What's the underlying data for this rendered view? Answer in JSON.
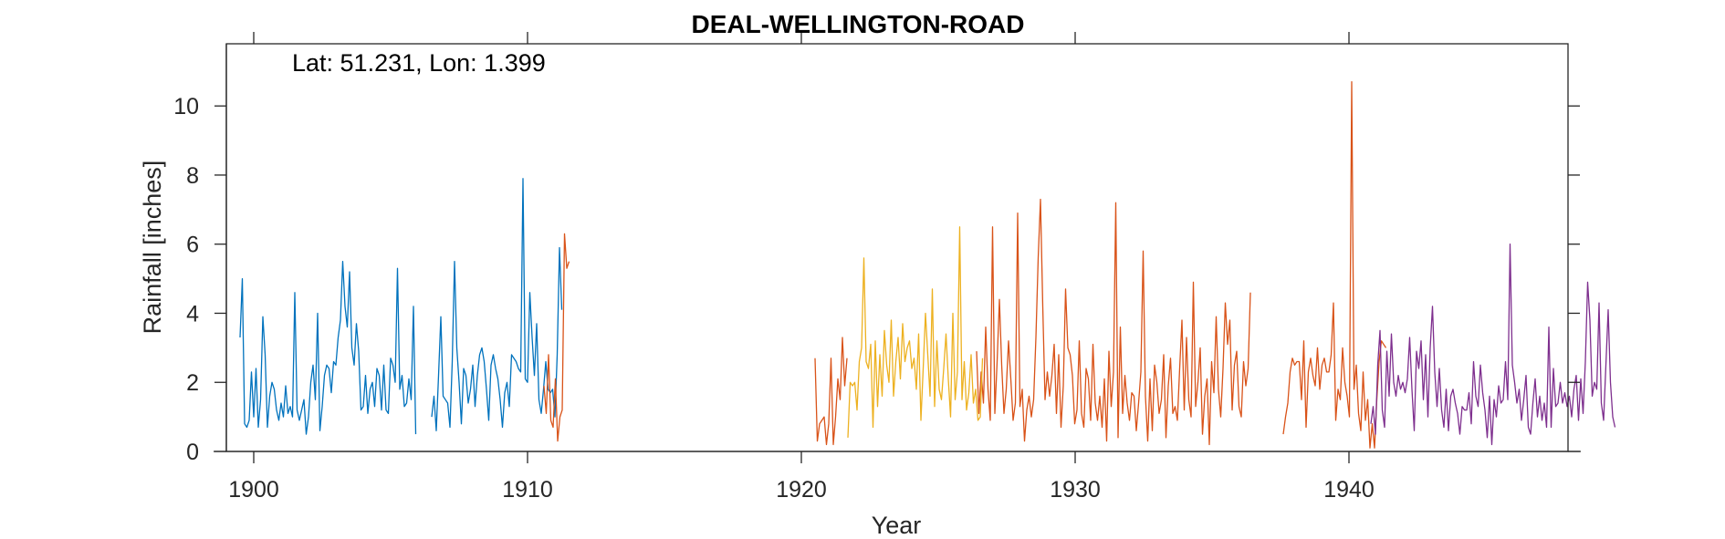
{
  "chart_data": {
    "type": "line",
    "title": "DEAL-WELLINGTON-ROAD",
    "annotation": "Lat: 51.231, Lon: 1.399",
    "xlabel": "Year",
    "ylabel": "Rainfall [inches]",
    "xlim": [
      1899,
      1948
    ],
    "ylim": [
      0,
      11.8
    ],
    "xticks": [
      1900,
      1910,
      1920,
      1930,
      1940
    ],
    "yticks": [
      0,
      2,
      4,
      6,
      8,
      10
    ],
    "grid": false,
    "series": [
      {
        "color": "#0072BD",
        "segments": [
          {
            "start": 1899.5,
            "values": [
              3.3,
              5.0,
              0.8,
              0.7,
              0.9,
              2.3,
              1.0,
              2.4,
              0.7,
              1.5,
              3.9,
              2.8,
              0.7,
              1.6,
              2.0,
              1.8,
              1.2,
              0.9,
              1.4,
              1.0,
              1.9,
              1.1,
              1.3,
              1.0,
              4.6,
              1.2,
              0.9,
              1.2,
              1.5,
              0.5,
              1.0,
              2.0,
              2.5,
              1.5,
              4.0,
              0.6,
              1.3,
              2.2,
              2.5,
              2.4,
              1.7,
              2.6,
              2.5,
              3.3,
              3.8,
              5.5,
              4.2,
              3.6,
              5.2,
              3.0,
              2.5,
              3.7,
              2.9,
              1.2,
              1.3,
              2.2,
              1.1,
              1.8,
              2.0,
              1.3,
              2.4,
              2.2,
              1.2,
              2.5,
              1.2,
              1.1,
              2.7,
              2.5,
              2.0,
              5.3,
              1.8,
              2.2,
              1.3,
              1.4,
              2.1,
              1.5,
              4.2,
              0.5
            ]
          },
          {
            "start": 1906.5,
            "values": [
              1.0,
              1.6,
              0.6,
              2.2,
              3.9,
              1.6,
              1.5,
              1.4,
              0.7,
              2.6,
              5.5,
              3.0,
              2.0,
              0.8,
              2.4,
              2.2,
              1.4,
              1.8,
              2.5,
              1.3,
              2.2,
              2.8,
              3.0,
              2.6,
              1.8,
              0.9,
              2.5,
              2.8,
              2.4,
              2.1,
              1.5,
              0.7,
              1.7,
              2.0,
              1.3,
              2.8,
              2.7,
              2.6,
              2.4,
              2.3,
              7.9,
              2.1,
              2.0,
              4.6,
              3.3,
              2.2,
              3.7,
              1.5,
              1.1,
              1.8,
              2.6,
              1.8,
              1.7,
              1.8,
              1.0,
              2.8,
              5.9,
              4.1
            ]
          }
        ]
      },
      {
        "color": "#D95319",
        "segments": [
          {
            "start": 1910.6,
            "values": [
              1.9,
              1.1,
              2.8,
              0.9,
              0.7,
              2.1,
              0.3,
              1.0,
              1.2,
              6.3,
              5.3,
              5.5
            ]
          },
          {
            "start": 1920.5,
            "values": [
              2.7,
              0.3,
              0.8,
              0.9,
              1.0,
              0.2,
              0.8,
              2.7,
              0.2,
              1.0,
              2.1,
              1.5,
              3.3,
              1.9,
              2.7
            ]
          },
          {
            "start": 1926.4,
            "values": [
              2.9,
              1.1,
              2.3,
              1.4,
              3.6,
              1.8,
              0.9,
              6.5,
              1.1,
              2.6,
              4.4,
              2.5,
              1.1,
              1.8,
              3.2,
              2.1,
              0.9,
              1.4,
              6.9,
              1.3,
              1.8,
              0.3,
              1.2,
              1.6,
              1.0,
              1.5,
              3.3,
              5.6,
              7.3,
              4.2,
              1.5,
              2.3,
              1.6,
              2.2,
              3.1,
              1.1,
              2.8,
              0.7,
              1.9,
              4.7,
              3.0,
              2.8,
              2.2,
              0.8,
              1.2,
              3.2,
              1.1,
              0.7,
              2.4,
              2.1,
              0.9,
              3.1,
              1.4,
              0.9,
              1.6,
              0.7,
              2.1,
              0.3,
              2.9,
              1.3,
              2.3,
              7.2,
              0.4,
              3.6,
              1.1,
              2.2,
              1.4,
              0.9,
              1.7,
              1.6,
              0.6,
              1.4,
              2.3,
              5.8,
              1.6,
              0.3,
              2.1,
              0.6,
              2.5,
              2.0,
              1.1,
              1.5,
              2.8,
              0.4,
              1.9,
              2.7,
              1.1,
              1.3,
              0.9,
              2.4,
              3.8,
              1.2,
              3.3,
              1.5,
              1.0,
              4.9,
              1.3,
              2.0,
              3.0,
              0.5,
              1.6,
              2.1,
              0.2,
              2.6,
              1.7,
              3.9,
              1.8,
              1.0,
              2.4,
              4.3,
              3.1,
              3.8,
              1.2,
              2.5,
              2.9,
              1.3,
              1.0,
              2.6,
              1.9,
              2.4,
              4.6
            ]
          },
          {
            "start": 1937.6,
            "values": [
              0.5,
              1.0,
              1.4,
              2.3,
              2.7,
              2.5,
              2.6,
              2.6,
              1.5,
              3.2,
              0.7,
              2.3,
              2.7,
              2.2,
              1.9,
              3.0,
              1.8,
              2.5,
              2.7,
              2.3,
              2.3,
              2.8,
              4.3,
              0.9,
              1.8,
              1.5,
              3.0,
              2.0,
              1.6,
              1.0,
              10.7,
              1.8,
              2.5,
              1.1,
              0.6,
              2.3,
              0.9,
              1.5,
              0.1,
              0.8,
              0.1,
              1.5,
              2.6,
              3.2,
              3.1,
              3.0
            ]
          }
        ]
      },
      {
        "color": "#EDB120",
        "segments": [
          {
            "start": 1921.7,
            "values": [
              0.4,
              2.0,
              1.9,
              2.0,
              1.2,
              2.6,
              3.0,
              5.6,
              2.6,
              2.4,
              3.1,
              0.7,
              3.2,
              1.3,
              2.8,
              1.6,
              3.5,
              2.5,
              2.0,
              3.8,
              1.6,
              2.6,
              3.3,
              2.1,
              3.7,
              2.6,
              3.0,
              3.2,
              2.4,
              2.7,
              1.8,
              3.4,
              0.9,
              2.4,
              4.0,
              2.8,
              1.6,
              4.7,
              1.3,
              3.2,
              1.8,
              1.5,
              2.4,
              3.4,
              2.1,
              1.0,
              4.0,
              1.5,
              2.3,
              6.5,
              1.5,
              2.6,
              1.2,
              1.7,
              2.8,
              1.4,
              1.8,
              0.9,
              1.0,
              2.7
            ]
          }
        ]
      },
      {
        "color": "#7E2F8E",
        "segments": [
          {
            "start": 1940.8,
            "values": [
              0.8,
              1.3,
              0.5,
              2.5,
              3.5,
              1.2,
              0.7,
              2.9,
              1.6,
              3.4,
              2.0,
              1.6,
              2.2,
              1.8,
              2.0,
              1.7,
              2.1,
              3.3,
              1.8,
              0.6,
              2.9,
              2.4,
              3.2,
              1.5,
              2.8,
              1.0,
              3.0,
              4.2,
              2.3,
              1.3,
              2.4,
              1.2,
              0.7,
              1.8,
              0.6,
              1.6,
              1.8,
              1.4,
              1.1,
              0.5,
              1.3,
              1.2,
              1.2,
              1.7,
              0.8,
              2.6,
              1.6,
              1.3,
              2.5,
              1.7,
              1.2,
              0.4,
              1.6,
              0.2,
              1.5,
              1.0,
              1.9,
              1.4,
              1.5,
              2.6,
              1.5,
              6.0,
              2.5,
              2.0,
              1.4,
              1.8,
              0.9,
              1.5,
              2.2,
              0.7,
              0.5,
              1.4,
              2.1,
              1.0,
              1.6,
              0.9,
              1.4,
              0.7,
              3.6,
              0.7,
              2.4,
              1.3,
              1.4,
              2.0,
              1.4,
              1.7,
              1.3,
              1.6,
              1.0,
              1.8,
              2.2,
              0.9,
              2.1,
              1.1,
              2.6,
              4.9,
              3.8,
              1.6,
              2.0,
              1.8,
              4.3,
              1.4,
              0.9,
              2.5,
              4.1,
              2.0,
              1.0,
              0.7
            ]
          }
        ]
      }
    ]
  }
}
